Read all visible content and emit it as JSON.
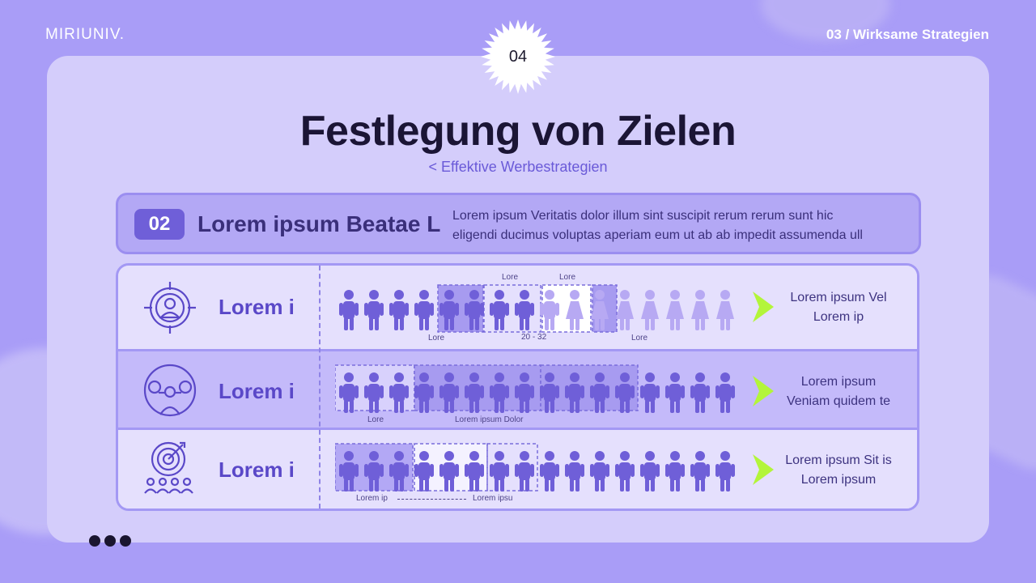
{
  "brand": "MIRIUNIV.",
  "section": "03 / Wirksame Strategien",
  "badge": "04",
  "title": "Festlegung von Zielen",
  "subtitle": "< Effektive Werbestrategien",
  "banner": {
    "number": "02",
    "title": "Lorem ipsum Beatae L",
    "text_line1": "Lorem ipsum Veritatis dolor illum sint suscipit rerum rerum sunt hic",
    "text_line2": "eligendi ducimus voluptas aperiam eum ut ab ab impedit assumenda ull"
  },
  "rows": [
    {
      "icon": "user-target-icon",
      "label": "Lorem i",
      "result_line1": "Lorem ipsum Vel",
      "result_line2": "Lorem ip",
      "labels": {
        "top1": "Lore",
        "top2": "Lore",
        "bottom1": "Lore",
        "bottom2": "20 - 32",
        "bottom3": "Lore"
      }
    },
    {
      "icon": "network-people-icon",
      "label": "Lorem i",
      "result_line1": "Lorem ipsum",
      "result_line2": "Veniam quidem te",
      "labels": {
        "bottom1": "Lore",
        "bottom2": "Lorem ipsum Dolor"
      }
    },
    {
      "icon": "target-audience-icon",
      "label": "Lorem i",
      "result_line1": "Lorem ipsum Sit is",
      "result_line2": "Lorem ipsum",
      "labels": {
        "bottom1": "Lorem ip",
        "bottom2": "Lorem ipsu"
      }
    }
  ],
  "colors": {
    "background": "#a99df7",
    "card": "#d4cdfb",
    "accent": "#6f5fd8",
    "figure_dark": "#6f5fd8",
    "figure_light": "#b7a9f3",
    "arrow": "#b3f53a"
  }
}
